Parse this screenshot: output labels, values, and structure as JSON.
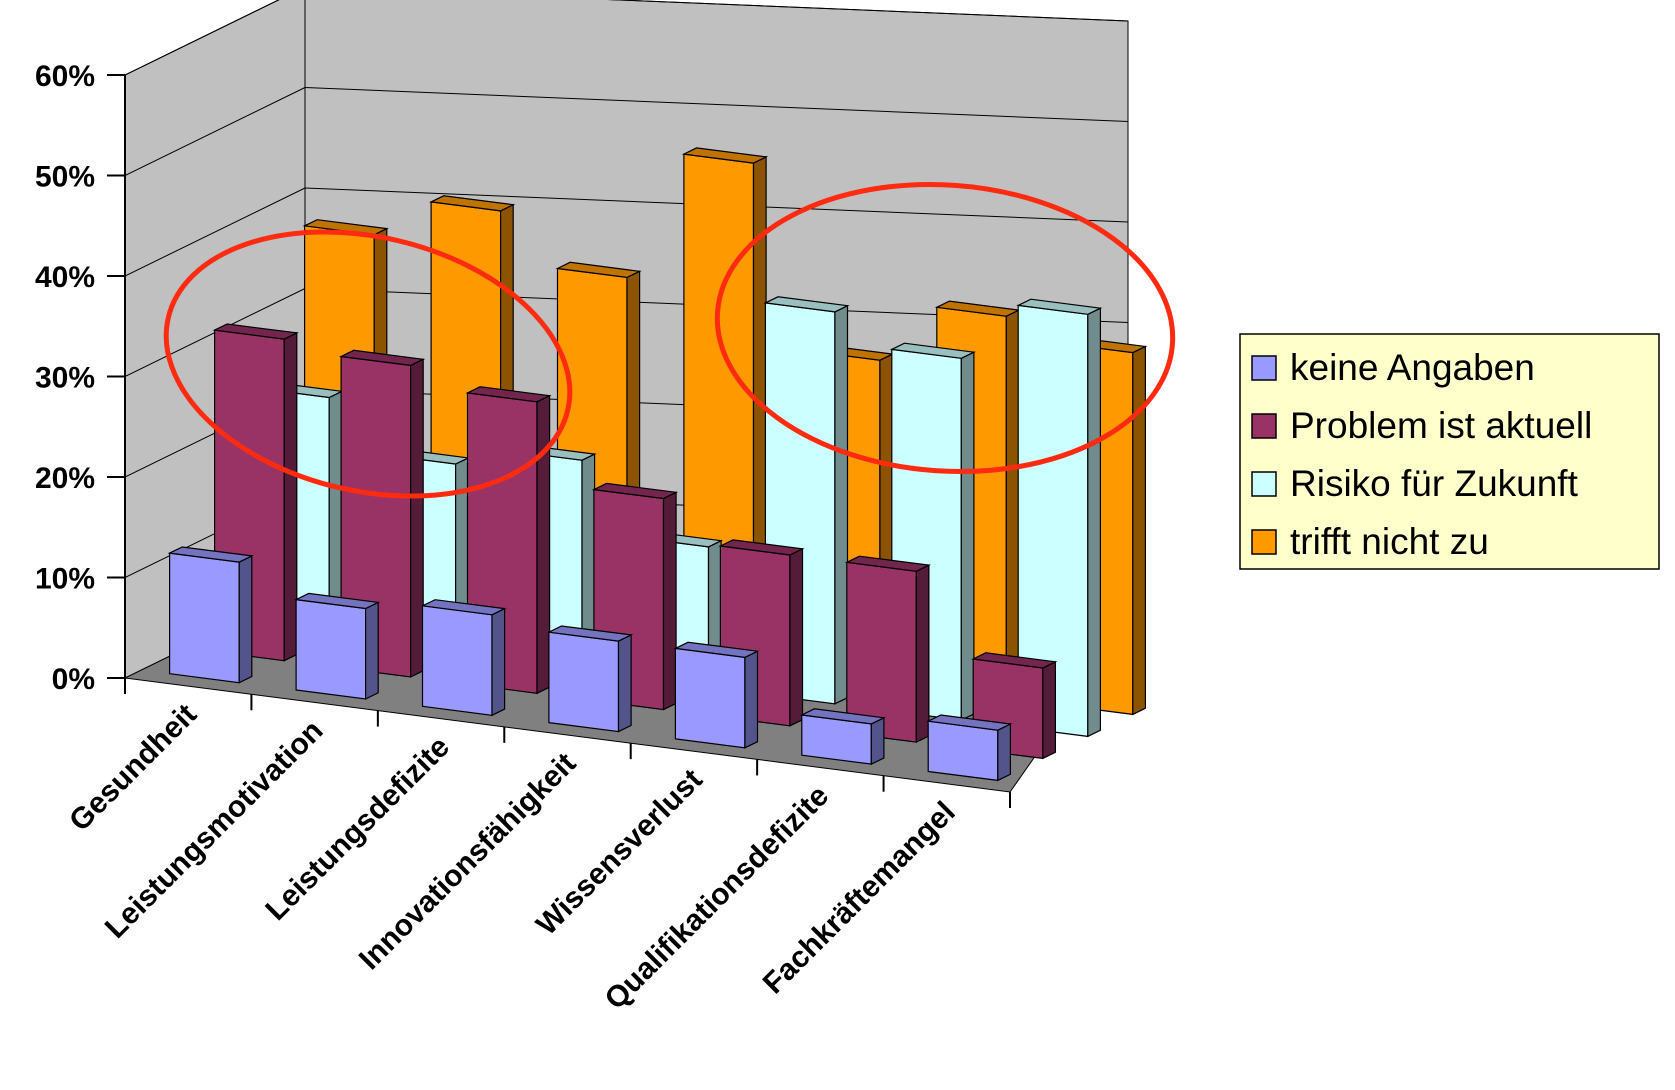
{
  "colors": {
    "keine": "#9999ff",
    "problem": "#993366",
    "risiko": "#ccffff",
    "trifft": "#ff9900",
    "back_wall": "#c0c0c0",
    "floor": "#808080",
    "annotation": "#ff2a0f",
    "legend_bg": "#ffffcc"
  },
  "chart_data": {
    "type": "bar",
    "subtype": "3d-clustered-column",
    "title": "",
    "xlabel": "",
    "ylabel": "",
    "ylim": [
      0,
      0.6
    ],
    "yticks": [
      "0%",
      "10%",
      "20%",
      "30%",
      "40%",
      "50%",
      "60%"
    ],
    "categories": [
      "Gesundheit",
      "Leistungsmotivation",
      "Leistungsdefizite",
      "Innovationsfähigkeit",
      "Wissensverlust",
      "Qualifikationsdefizite",
      "Fachkräftemangel"
    ],
    "series": [
      {
        "name": "keine Angaben",
        "color_key": "keine",
        "values": [
          0.12,
          0.09,
          0.1,
          0.09,
          0.09,
          0.04,
          0.05
        ]
      },
      {
        "name": "Problem ist aktuell",
        "color_key": "problem",
        "values": [
          0.32,
          0.31,
          0.29,
          0.21,
          0.17,
          0.17,
          0.09
        ]
      },
      {
        "name": "Risiko für Zukunft",
        "color_key": "risiko",
        "values": [
          0.24,
          0.19,
          0.21,
          0.14,
          0.39,
          0.36,
          0.42
        ]
      },
      {
        "name": "trifft nicht zu",
        "color_key": "trifft",
        "values": [
          0.38,
          0.42,
          0.37,
          0.5,
          0.32,
          0.38,
          0.36
        ]
      }
    ],
    "grid": true,
    "legend_position": "right",
    "annotations": [
      "red ellipse around Problem ist aktuell (Gesundheit to Leistungsdefizite)",
      "red ellipse around Risiko für Zukunft (Wissensverlust to Fachkräftemangel)"
    ]
  }
}
